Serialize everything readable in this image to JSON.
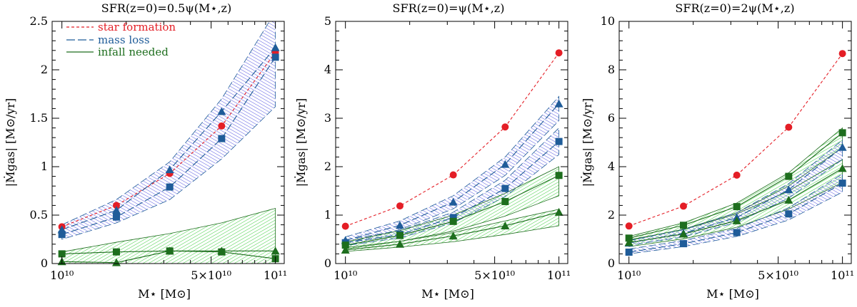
{
  "chart_data": [
    {
      "type": "line",
      "title": "SFR(z=0)=0.5ψ(M⋆,z)",
      "xlabel": "M⋆ [M⊙]",
      "ylabel": "|Ṁgas| [M⊙/yr]",
      "xscale": "log",
      "xlim": [
        9000000000,
        110000000000
      ],
      "ylim": [
        0,
        2.5
      ],
      "xticks": [
        "10¹⁰",
        "5×10¹⁰",
        "10¹¹"
      ],
      "yticks": [
        "0",
        "0.5",
        "1",
        "1.5",
        "2",
        "2.5"
      ],
      "x": [
        10000000000,
        18000000000,
        32000000000,
        56000000000,
        100000000000
      ],
      "legend": [
        "star formation",
        "mass loss",
        "infall needed"
      ],
      "legend_position": "top-left",
      "series": [
        {
          "name": "star formation",
          "marker": "circle",
          "color": "#e41e26",
          "values": [
            0.38,
            0.6,
            0.93,
            1.42,
            2.18
          ]
        },
        {
          "marker": "square",
          "color": "#1f5c99",
          "values": [
            0.3,
            0.48,
            0.79,
            1.29,
            2.13
          ]
        },
        {
          "marker": "triangle",
          "color": "#1f5c99",
          "values": [
            0.35,
            0.55,
            0.97,
            1.57,
            2.23
          ]
        },
        {
          "marker": "square",
          "color": "#1e6e1e",
          "values": [
            0.1,
            0.12,
            0.13,
            0.12,
            0.05
          ]
        },
        {
          "marker": "triangle",
          "color": "#1e6e1e",
          "values": [
            0.02,
            0.01,
            0.13,
            0.13,
            0.13
          ]
        }
      ],
      "bands": [
        {
          "kind": "mass loss",
          "color": "#3b3bd9",
          "lower": [
            0.25,
            0.42,
            0.66,
            1.08,
            1.62
          ],
          "upper": [
            0.4,
            0.66,
            1.05,
            1.7,
            2.6
          ]
        },
        {
          "kind": "infall needed",
          "color": "#22c322",
          "lower": [
            0.0,
            0.0,
            0.0,
            0.0,
            0.0
          ],
          "upper": [
            0.12,
            0.22,
            0.31,
            0.42,
            0.57
          ]
        }
      ]
    },
    {
      "type": "line",
      "title": "SFR(z=0)=ψ(M⋆,z)",
      "xlabel": "M⋆ [M⊙]",
      "ylabel": "|Ṁgas| [M⊙/yr]",
      "xscale": "log",
      "xlim": [
        9000000000,
        110000000000
      ],
      "ylim": [
        0,
        5
      ],
      "xticks": [
        "10¹⁰",
        "5×10¹⁰",
        "10¹¹"
      ],
      "yticks": [
        "0",
        "1",
        "2",
        "3",
        "4",
        "5"
      ],
      "x": [
        10000000000,
        18000000000,
        32000000000,
        56000000000,
        100000000000
      ],
      "series": [
        {
          "marker": "circle",
          "color": "#e41e26",
          "values": [
            0.77,
            1.19,
            1.83,
            2.82,
            4.35
          ]
        },
        {
          "marker": "triangle",
          "color": "#1f5c99",
          "values": [
            0.48,
            0.79,
            1.27,
            2.05,
            3.3
          ]
        },
        {
          "marker": "square",
          "color": "#1f5c99",
          "values": [
            0.43,
            0.6,
            0.95,
            1.55,
            2.52
          ]
        },
        {
          "marker": "square",
          "color": "#1e6e1e",
          "values": [
            0.38,
            0.58,
            0.87,
            1.28,
            1.82
          ]
        },
        {
          "marker": "triangle",
          "color": "#1e6e1e",
          "values": [
            0.28,
            0.4,
            0.57,
            0.78,
            1.06
          ]
        }
      ],
      "bands": [
        {
          "kind": "mass loss",
          "color": "#3b3bd9",
          "lower": [
            0.42,
            0.7,
            1.13,
            1.82,
            2.95
          ],
          "upper": [
            0.55,
            0.88,
            1.4,
            2.2,
            3.45
          ]
        },
        {
          "kind": "mass loss",
          "color": "#3b3bd9",
          "lower": [
            0.37,
            0.53,
            0.84,
            1.38,
            2.25
          ],
          "upper": [
            0.49,
            0.68,
            1.06,
            1.72,
            2.8
          ]
        },
        {
          "kind": "infall needed",
          "color": "#22c322",
          "lower": [
            0.3,
            0.46,
            0.67,
            0.98,
            1.4
          ],
          "upper": [
            0.45,
            0.68,
            1.0,
            1.45,
            2.0
          ]
        },
        {
          "kind": "infall needed",
          "color": "#22c322",
          "lower": [
            0.25,
            0.34,
            0.45,
            0.6,
            0.78
          ],
          "upper": [
            0.33,
            0.46,
            0.64,
            0.88,
            1.12
          ]
        }
      ]
    },
    {
      "type": "line",
      "title": "SFR(z=0)=2ψ(M⋆,z)",
      "xlabel": "M⋆ [M⊙]",
      "ylabel": "|Ṁgas| [M⊙/yr]",
      "xscale": "log",
      "xlim": [
        9000000000,
        110000000000
      ],
      "ylim": [
        0,
        10
      ],
      "xticks": [
        "10¹⁰",
        "5×10¹⁰",
        "10¹¹"
      ],
      "yticks": [
        "0",
        "2",
        "4",
        "6",
        "8",
        "10"
      ],
      "x": [
        10000000000,
        18000000000,
        32000000000,
        56000000000,
        100000000000
      ],
      "series": [
        {
          "marker": "circle",
          "color": "#e41e26",
          "values": [
            1.55,
            2.37,
            3.65,
            5.63,
            8.67
          ]
        },
        {
          "marker": "square",
          "color": "#1e6e1e",
          "values": [
            1.05,
            1.58,
            2.35,
            3.6,
            5.4
          ]
        },
        {
          "marker": "triangle",
          "color": "#1f5c99",
          "values": [
            0.85,
            1.25,
            1.9,
            3.05,
            4.8
          ]
        },
        {
          "marker": "triangle",
          "color": "#1e6e1e",
          "values": [
            0.87,
            1.22,
            1.77,
            2.62,
            3.93
          ]
        },
        {
          "marker": "square",
          "color": "#1f5c99",
          "values": [
            0.47,
            0.82,
            1.28,
            2.05,
            3.32
          ]
        }
      ],
      "bands": [
        {
          "kind": "infall needed",
          "color": "#22c322",
          "lower": [
            0.95,
            1.42,
            2.1,
            3.2,
            4.8
          ],
          "upper": [
            1.12,
            1.68,
            2.5,
            3.75,
            5.6
          ]
        },
        {
          "kind": "infall needed",
          "color": "#22c322",
          "lower": [
            0.7,
            1.02,
            1.5,
            2.25,
            3.35
          ],
          "upper": [
            0.98,
            1.4,
            2.05,
            3.0,
            4.3
          ]
        },
        {
          "kind": "mass loss",
          "color": "#3b3bd9",
          "lower": [
            0.75,
            1.1,
            1.7,
            2.7,
            4.3
          ],
          "upper": [
            0.95,
            1.4,
            2.1,
            3.3,
            5.1
          ]
        },
        {
          "kind": "mass loss",
          "color": "#3b3bd9",
          "lower": [
            0.4,
            0.7,
            1.12,
            1.8,
            2.95
          ],
          "upper": [
            0.6,
            0.95,
            1.45,
            2.3,
            3.7
          ]
        }
      ]
    }
  ]
}
